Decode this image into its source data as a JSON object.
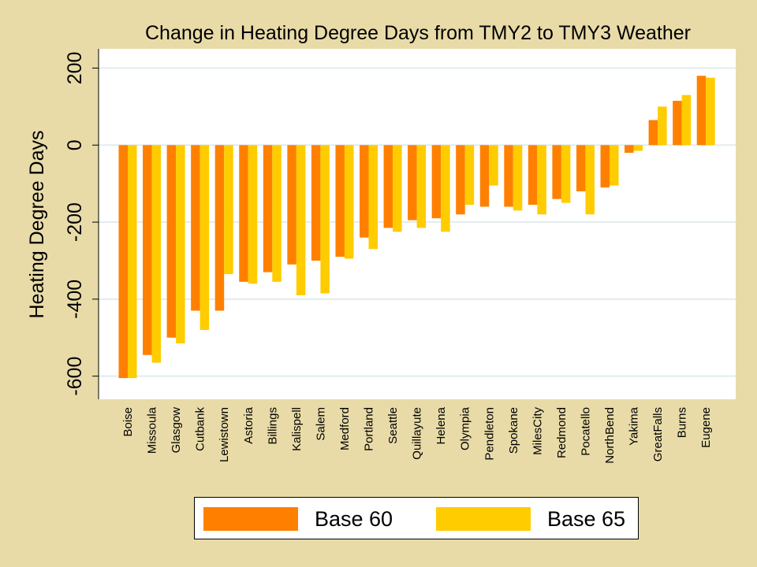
{
  "chart_data": {
    "type": "bar",
    "title": "Change in Heating Degree Days from TMY2 to TMY3 Weather",
    "ylabel": "Heating Degree Days",
    "xlabel": "",
    "ylim": [
      -660,
      250
    ],
    "yticks": [
      200,
      0,
      -200,
      -400,
      -600
    ],
    "grid": true,
    "legend_position": "bottom",
    "categories": [
      "Boise",
      "Missoula",
      "Glasgow",
      "Cutbank",
      "Lewistown",
      "Astoria",
      "Billings",
      "Kalispell",
      "Salem",
      "Medford",
      "Portland",
      "Seattle",
      "Quillayute",
      "Helena",
      "Olympia",
      "Pendleton",
      "Spokane",
      "MilesCity",
      "Redmond",
      "Pocatello",
      "NorthBend",
      "Yakima",
      "GreatFalls",
      "Burns",
      "Eugene"
    ],
    "series": [
      {
        "name": "Base 60",
        "color": "#ff8000",
        "values": [
          -605,
          -545,
          -500,
          -430,
          -430,
          -355,
          -330,
          -310,
          -300,
          -290,
          -240,
          -215,
          -195,
          -190,
          -180,
          -160,
          -160,
          -155,
          -140,
          -120,
          -110,
          -20,
          65,
          115,
          180
        ]
      },
      {
        "name": "Base 65",
        "color": "#ffcc00",
        "values": [
          -605,
          -565,
          -515,
          -480,
          -335,
          -360,
          -355,
          -390,
          -385,
          -295,
          -270,
          -225,
          -215,
          -225,
          -155,
          -105,
          -170,
          -180,
          -150,
          -180,
          -105,
          -15,
          100,
          130,
          175
        ]
      }
    ]
  }
}
